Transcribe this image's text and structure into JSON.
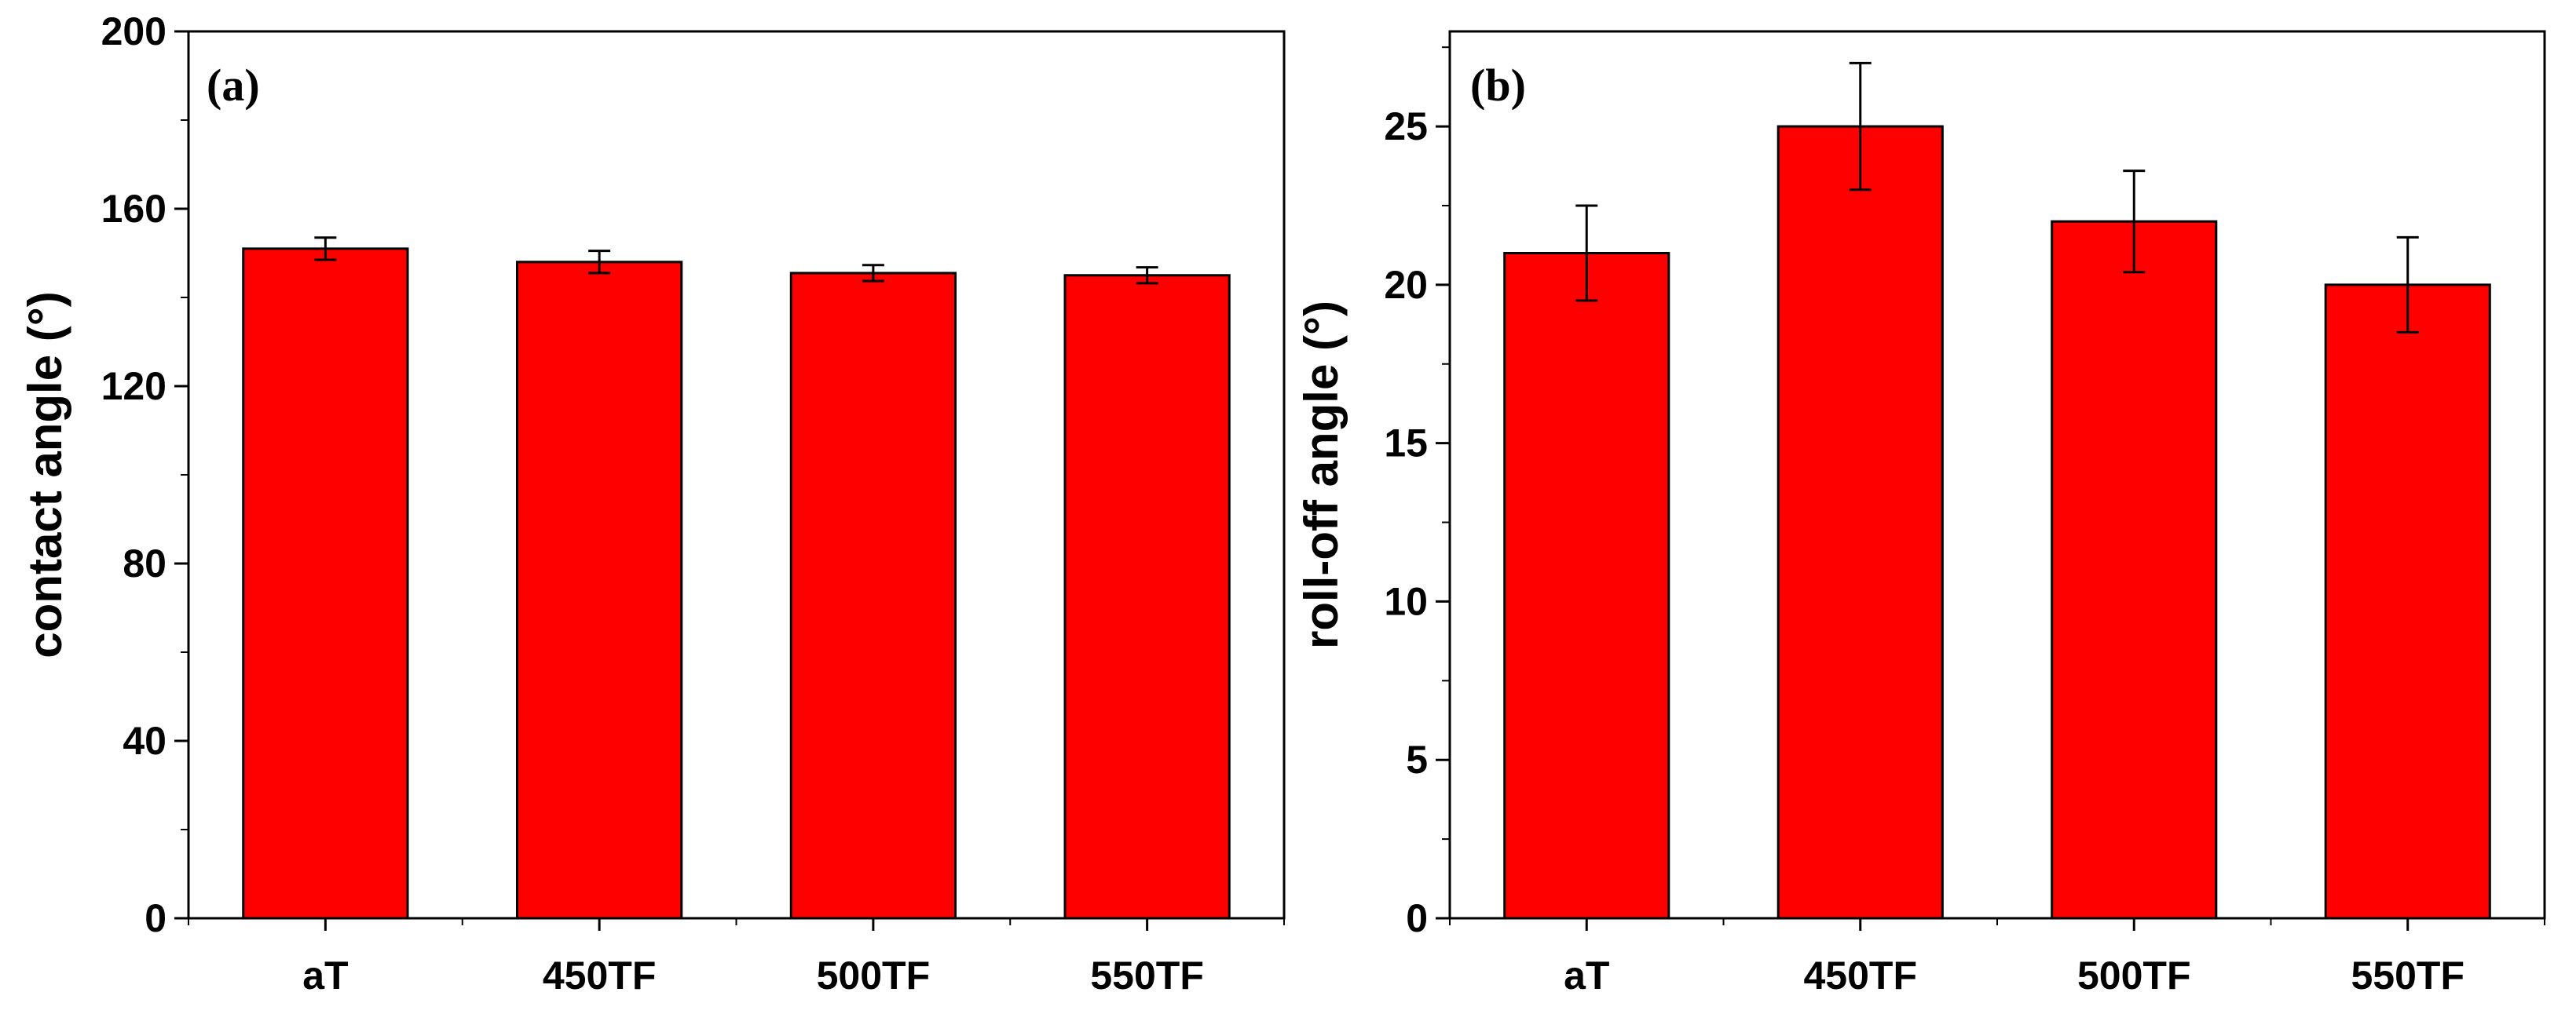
{
  "figure": {
    "background": "#ffffff",
    "bar_color": "#ff0000"
  },
  "chart_data": [
    {
      "type": "bar",
      "panel_label": "(a)",
      "title": "",
      "xlabel": "",
      "ylabel": "contact angle (°)",
      "categories": [
        "aT",
        "450TF",
        "500TF",
        "550TF"
      ],
      "values": [
        151,
        148,
        145.5,
        145
      ],
      "errors": [
        2.5,
        2.5,
        1.8,
        1.8
      ],
      "ylim": [
        0,
        200
      ],
      "yticks": [
        0,
        40,
        80,
        120,
        160,
        200
      ],
      "ytick_labels": [
        "0",
        "40",
        "80",
        "120",
        "160",
        "200"
      ],
      "grid": false
    },
    {
      "type": "bar",
      "panel_label": "(b)",
      "title": "",
      "xlabel": "",
      "ylabel": "roll-off angle (°)",
      "categories": [
        "aT",
        "450TF",
        "500TF",
        "550TF"
      ],
      "values": [
        21,
        25,
        22,
        20
      ],
      "errors": [
        1.5,
        2,
        1.6,
        1.5
      ],
      "ylim": [
        0,
        28
      ],
      "yticks": [
        0,
        5,
        10,
        15,
        20,
        25
      ],
      "ytick_labels": [
        "0",
        "5",
        "10",
        "15",
        "20",
        "25"
      ],
      "grid": false
    }
  ]
}
